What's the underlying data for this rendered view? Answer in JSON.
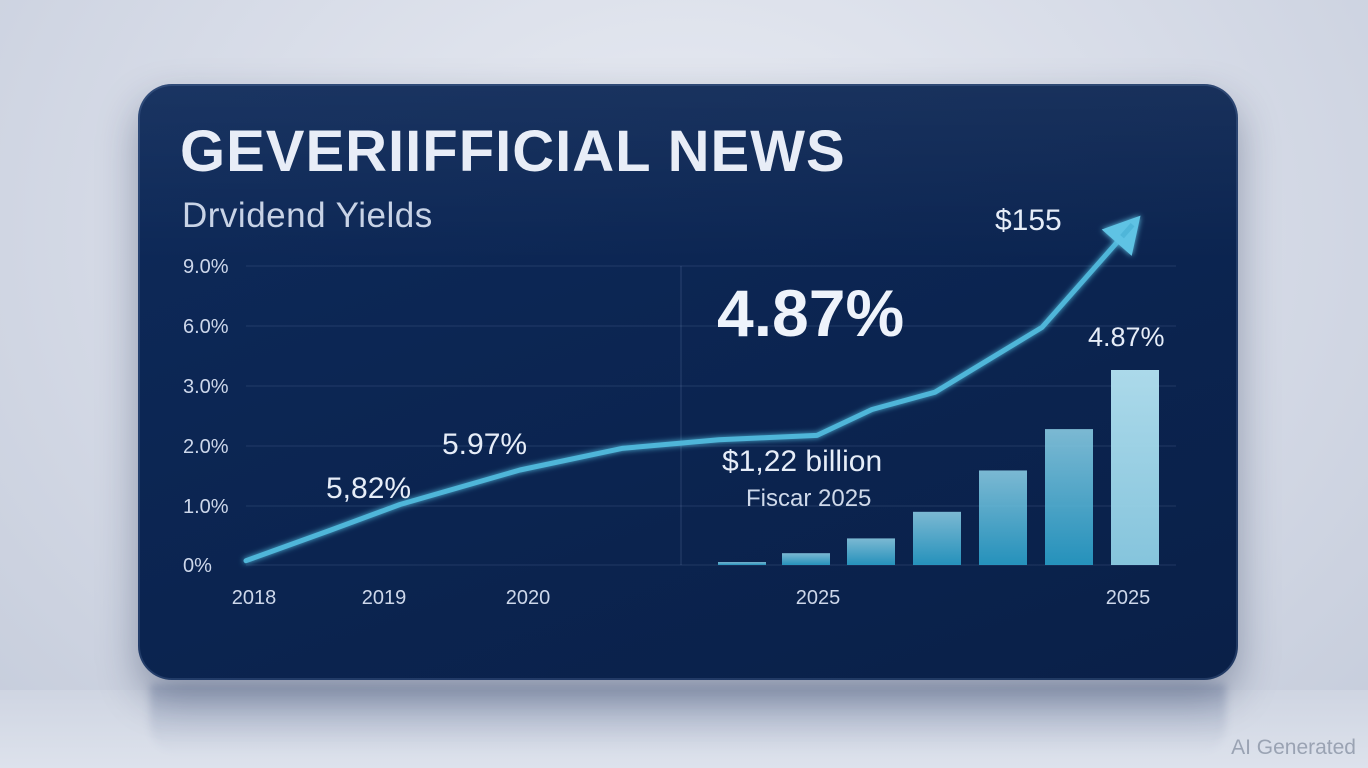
{
  "title": "GEVERIIFFICIAL NEWS",
  "subtitle": "Drvidend Yields",
  "watermark": "AI Generated",
  "colors": {
    "card": "#0b2450",
    "line": "#4fb6d9",
    "bar_light": "#a7dcef",
    "bar_mid": "#3fb4d6"
  },
  "chart_data": {
    "type": "line",
    "yticks": [
      "9.0%",
      "6.0%",
      "3.0%",
      "2.0%",
      "1.0%",
      "0%"
    ],
    "xticks": [
      "2018",
      "2019",
      "2020",
      "2025",
      "2025"
    ],
    "series": [
      {
        "values": [
          0.1,
          0.8,
          1.4,
          2.2,
          2.7,
          2.9,
          3.0,
          3.6,
          4.0,
          5.5,
          7.6
        ]
      }
    ],
    "bars": {
      "values": [
        0.05,
        0.2,
        0.45,
        0.9,
        1.6,
        2.3,
        3.3
      ],
      "label": "4.87%"
    },
    "annotations": {
      "big_value": "4.87%",
      "peak": "$155",
      "point_a": "5,82%",
      "point_b": "5.97%",
      "revenue": "$1,22 billion",
      "revenue_sub": "Fiscar 2025"
    },
    "grid": true
  }
}
